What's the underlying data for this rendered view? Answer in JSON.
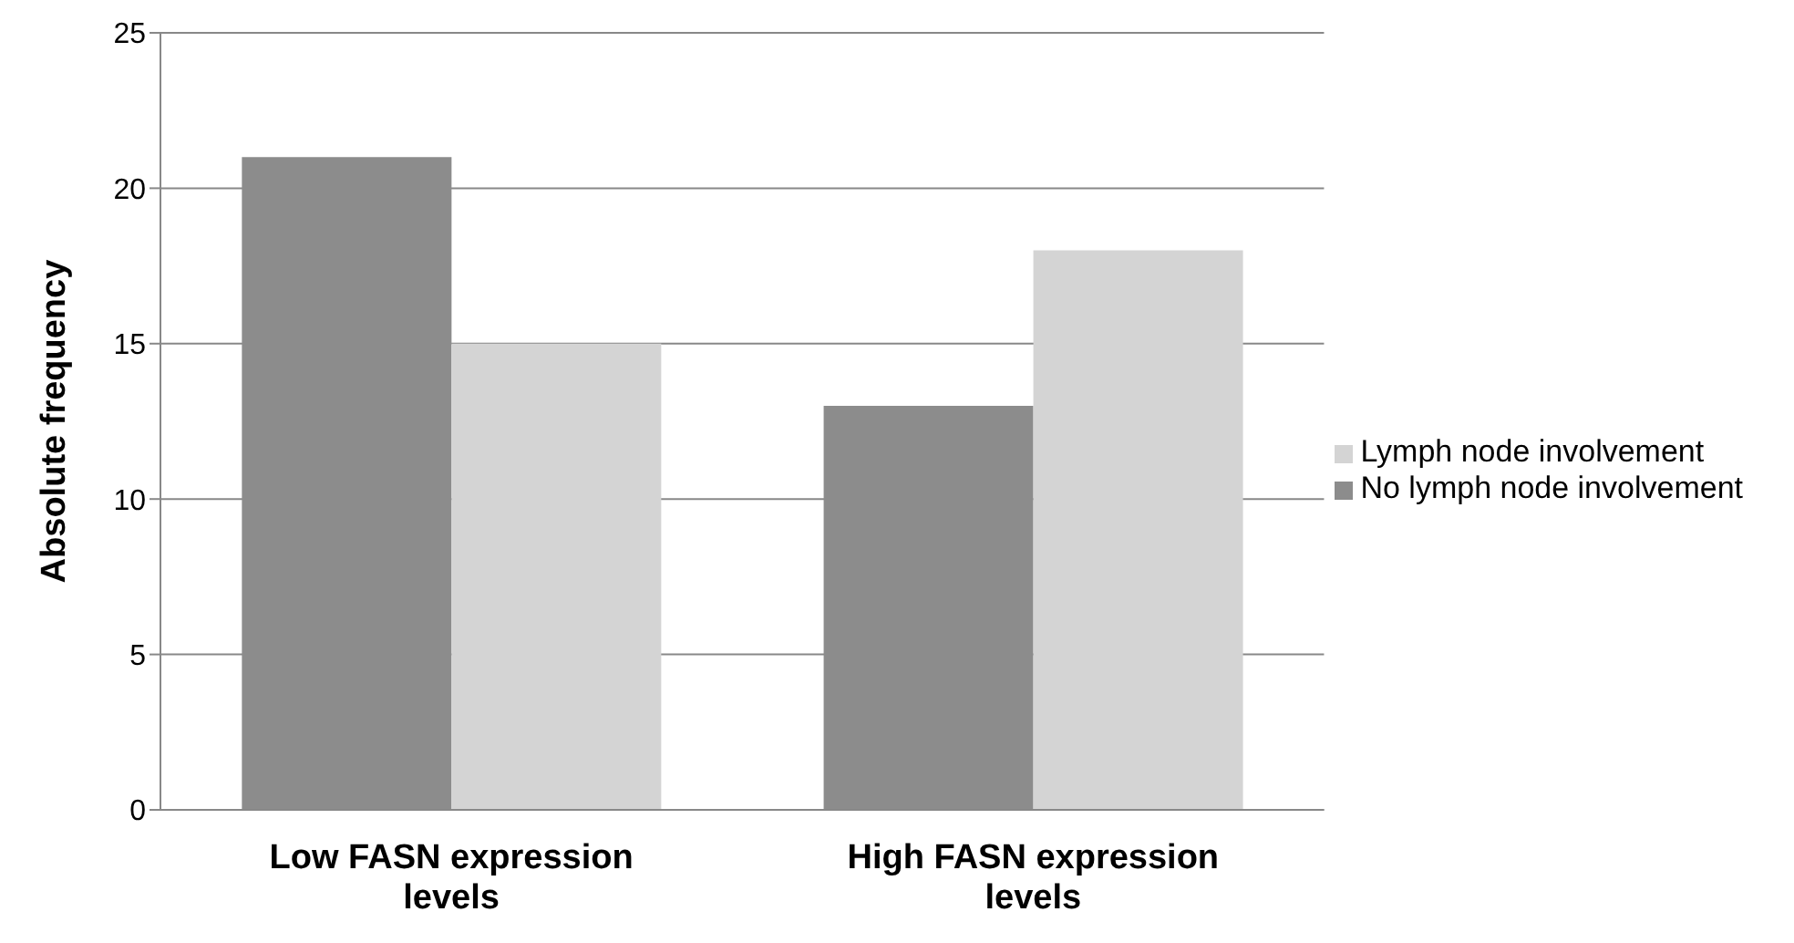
{
  "chart_data": {
    "type": "bar",
    "categories": [
      "Low FASN expression levels",
      "High FASN expression levels"
    ],
    "ylabel": "Absolute frequency",
    "series": [
      {
        "name": "No lymph node involvement",
        "color": "#8c8c8c",
        "values": [
          21,
          13
        ]
      },
      {
        "name": "Lymph node involvement",
        "color": "#d4d4d4",
        "values": [
          15,
          18
        ]
      }
    ],
    "ylim": [
      0,
      25
    ],
    "yticks": [
      0,
      5,
      10,
      15,
      20,
      25
    ],
    "grid": "y",
    "legend": "right"
  }
}
